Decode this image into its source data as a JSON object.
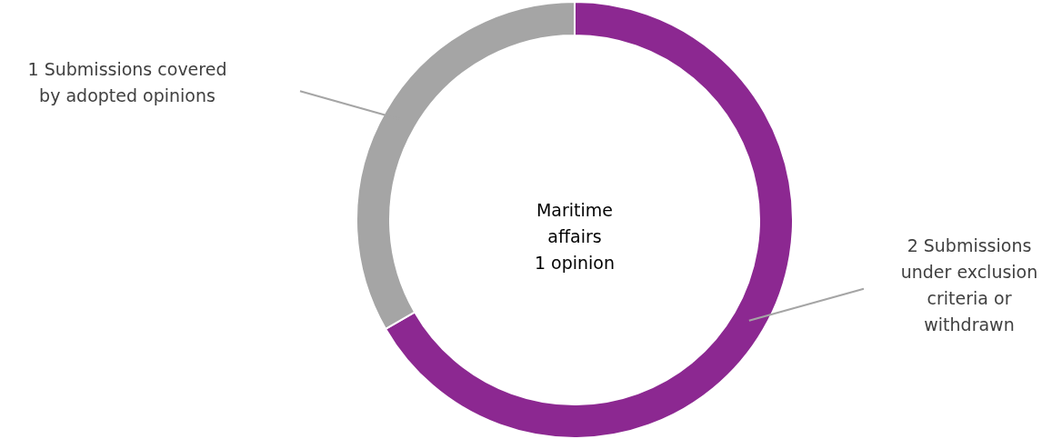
{
  "chart_data": {
    "type": "donut",
    "categories": [
      "2 Submissions under exclusion criteria or withdrawn",
      "1 Submissions covered by adopted opinions"
    ],
    "values": [
      66.67,
      33.33
    ],
    "colors": [
      "#8c2891",
      "#a5a5a5"
    ],
    "annotations": [
      "Maritime\naffairs\n1 opinion"
    ]
  }
}
